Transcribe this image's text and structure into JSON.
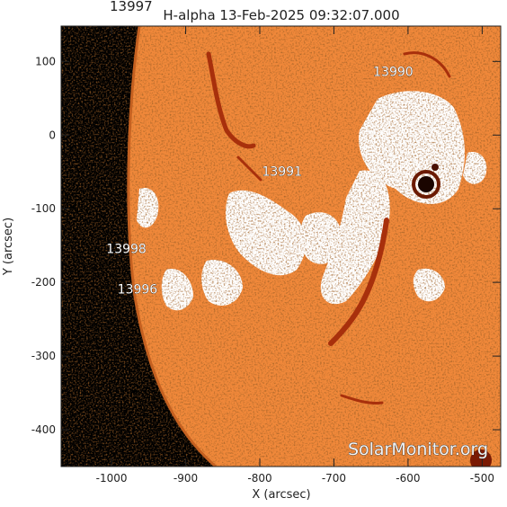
{
  "title": "H-alpha 13-Feb-2025 09:32:07.000",
  "title_overlap": "13997",
  "xlabel": "X (arcsec)",
  "ylabel": "Y (arcsec)",
  "x_ticks": [
    "-1000",
    "-900",
    "-800",
    "-700",
    "-600",
    "-500"
  ],
  "y_ticks": [
    "100",
    "0",
    "-100",
    "-200",
    "-300",
    "-400"
  ],
  "active_regions": [
    {
      "label": "13990",
      "x": -620,
      "y": 80
    },
    {
      "label": "13991",
      "x": -770,
      "y": -55
    },
    {
      "label": "13998",
      "x": -980,
      "y": -160
    },
    {
      "label": "13996",
      "x": -965,
      "y": -215
    }
  ],
  "watermark": "SolarMonitor.org",
  "colors": {
    "background": "#ffffff",
    "space": "#000000",
    "disk": "#f0883a",
    "plage": "#ffffff",
    "filament": "#b33a10",
    "axis": "#222222"
  }
}
